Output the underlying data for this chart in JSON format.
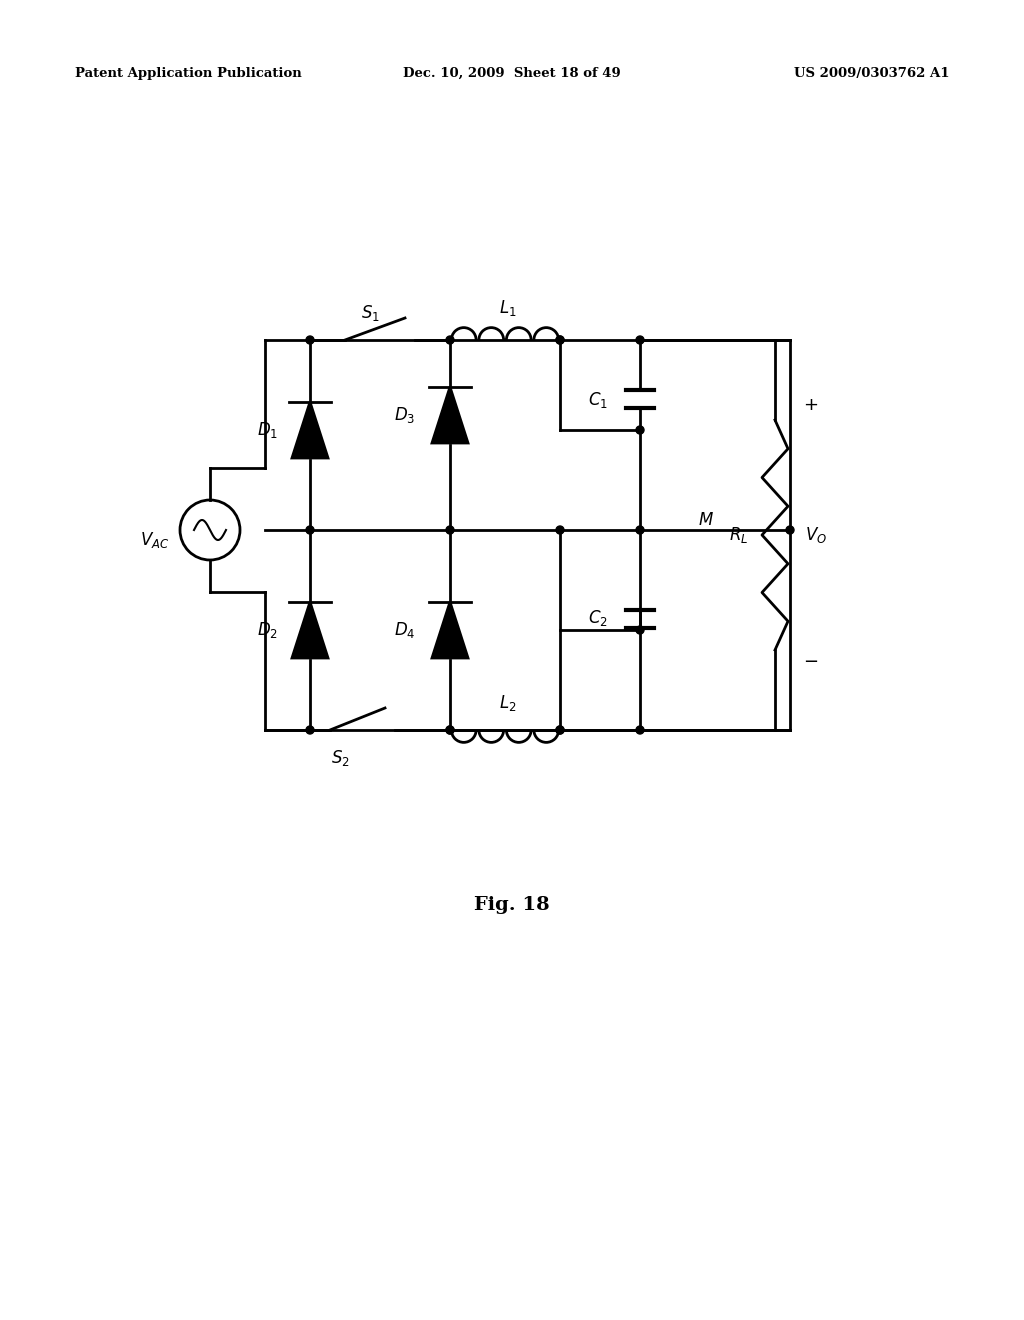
{
  "title_left": "Patent Application Publication",
  "title_center": "Dec. 10, 2009  Sheet 18 of 49",
  "title_right": "US 2009/0303762 A1",
  "fig_label": "Fig. 18",
  "line_color": "#000000",
  "background_color": "#ffffff"
}
